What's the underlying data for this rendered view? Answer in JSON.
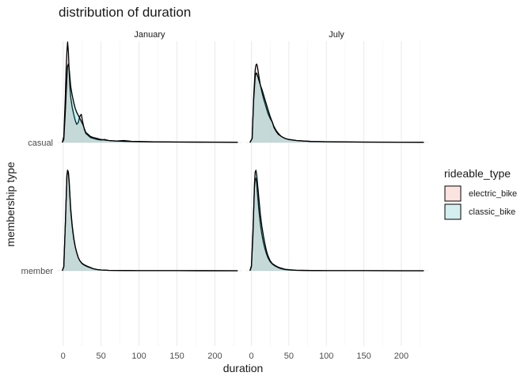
{
  "chart_data": {
    "type": "area",
    "title": "distribution of duration",
    "xlabel": "duration",
    "ylabel": "membership type",
    "xlim": [
      -8,
      236
    ],
    "x_ticks": [
      "0",
      "50",
      "100",
      "150",
      "200"
    ],
    "y_categories": [
      "casual",
      "member"
    ],
    "facets": [
      "January",
      "July"
    ],
    "legend": {
      "title": "rideable_type",
      "position": "right",
      "entries": [
        {
          "name": "electric_bike",
          "fill": "#fbe3e0",
          "alpha_fill": "rgba(248,118,109,0.22)"
        },
        {
          "name": "classic_bike",
          "fill": "#d5eef0",
          "alpha_fill": "rgba(0,191,196,0.22)"
        }
      ]
    },
    "grid": true,
    "series": [
      {
        "facet": "January",
        "membership": "casual",
        "name": "electric_bike",
        "x": [
          -1,
          1,
          3,
          4,
          5,
          6,
          7,
          8,
          9,
          10,
          12,
          14,
          16,
          18,
          20,
          22,
          24,
          26,
          28,
          30,
          33,
          36,
          40,
          45,
          50,
          55,
          60,
          70,
          80,
          90,
          100,
          120,
          150,
          200,
          230
        ],
        "y": [
          0,
          0.06,
          0.45,
          0.72,
          0.9,
          1.0,
          0.9,
          0.72,
          0.55,
          0.45,
          0.35,
          0.28,
          0.22,
          0.18,
          0.2,
          0.26,
          0.28,
          0.2,
          0.13,
          0.09,
          0.07,
          0.05,
          0.04,
          0.03,
          0.025,
          0.03,
          0.02,
          0.015,
          0.02,
          0.012,
          0.01,
          0.007,
          0.005,
          0.004,
          0.002
        ]
      },
      {
        "facet": "January",
        "membership": "casual",
        "name": "classic_bike",
        "x": [
          -1,
          1,
          3,
          5,
          6,
          7,
          8,
          9,
          10,
          12,
          14,
          16,
          18,
          20,
          22,
          24,
          26,
          28,
          30,
          33,
          36,
          40,
          45,
          50,
          55,
          60,
          70,
          80,
          90,
          100,
          120,
          150,
          200,
          230
        ],
        "y": [
          0,
          0.03,
          0.3,
          0.65,
          0.76,
          0.78,
          0.74,
          0.65,
          0.56,
          0.47,
          0.4,
          0.34,
          0.3,
          0.27,
          0.24,
          0.21,
          0.18,
          0.14,
          0.1,
          0.08,
          0.06,
          0.05,
          0.04,
          0.03,
          0.025,
          0.02,
          0.015,
          0.012,
          0.01,
          0.008,
          0.006,
          0.004,
          0.003,
          0.002
        ]
      },
      {
        "facet": "July",
        "membership": "casual",
        "name": "electric_bike",
        "x": [
          -2,
          1,
          3,
          5,
          6,
          7,
          8,
          10,
          12,
          14,
          16,
          18,
          20,
          22,
          25,
          28,
          30,
          33,
          36,
          40,
          45,
          50,
          60,
          70,
          80,
          100,
          120,
          150,
          200,
          230
        ],
        "y": [
          0,
          0.04,
          0.45,
          0.72,
          0.77,
          0.78,
          0.76,
          0.66,
          0.57,
          0.5,
          0.44,
          0.39,
          0.34,
          0.29,
          0.24,
          0.2,
          0.16,
          0.12,
          0.09,
          0.06,
          0.04,
          0.03,
          0.02,
          0.014,
          0.01,
          0.007,
          0.005,
          0.004,
          0.003,
          0.002
        ]
      },
      {
        "facet": "July",
        "membership": "casual",
        "name": "classic_bike",
        "x": [
          -2,
          1,
          3,
          5,
          6,
          7,
          8,
          10,
          12,
          14,
          16,
          18,
          20,
          22,
          25,
          28,
          30,
          33,
          36,
          40,
          45,
          50,
          60,
          70,
          80,
          100,
          120,
          150,
          200,
          230
        ],
        "y": [
          0,
          0.04,
          0.42,
          0.65,
          0.69,
          0.69,
          0.67,
          0.62,
          0.57,
          0.53,
          0.48,
          0.43,
          0.38,
          0.33,
          0.26,
          0.2,
          0.15,
          0.11,
          0.08,
          0.06,
          0.04,
          0.03,
          0.02,
          0.015,
          0.01,
          0.008,
          0.006,
          0.004,
          0.003,
          0.002
        ]
      },
      {
        "facet": "January",
        "membership": "member",
        "name": "electric_bike",
        "x": [
          -1,
          1,
          3,
          5,
          6,
          7,
          8,
          9,
          10,
          12,
          14,
          16,
          18,
          20,
          22,
          25,
          28,
          32,
          36,
          40,
          45,
          50,
          60,
          80,
          100,
          150,
          230
        ],
        "y": [
          0,
          0.04,
          0.45,
          0.94,
          1.0,
          0.98,
          0.9,
          0.76,
          0.62,
          0.45,
          0.33,
          0.24,
          0.18,
          0.13,
          0.1,
          0.07,
          0.055,
          0.04,
          0.03,
          0.02,
          0.012,
          0.008,
          0.004,
          0.002,
          0.001,
          0.0005,
          0
        ]
      },
      {
        "facet": "January",
        "membership": "member",
        "name": "classic_bike",
        "x": [
          -1,
          1,
          3,
          5,
          6,
          7,
          8,
          9,
          10,
          12,
          14,
          16,
          18,
          20,
          22,
          25,
          28,
          32,
          36,
          40,
          45,
          50,
          60,
          80,
          100,
          150,
          230
        ],
        "y": [
          0,
          0.04,
          0.46,
          0.95,
          1.0,
          0.97,
          0.88,
          0.74,
          0.6,
          0.44,
          0.32,
          0.24,
          0.18,
          0.13,
          0.1,
          0.075,
          0.06,
          0.045,
          0.032,
          0.02,
          0.012,
          0.008,
          0.004,
          0.002,
          0.001,
          0.0005,
          0
        ]
      },
      {
        "facet": "July",
        "membership": "member",
        "name": "electric_bike",
        "x": [
          -2,
          0,
          2,
          4,
          5,
          6,
          7,
          8,
          10,
          12,
          14,
          16,
          18,
          20,
          22,
          25,
          28,
          32,
          36,
          40,
          45,
          50,
          60,
          80,
          100,
          150,
          230
        ],
        "y": [
          0,
          0.05,
          0.4,
          0.82,
          0.92,
          0.92,
          0.87,
          0.78,
          0.6,
          0.46,
          0.36,
          0.28,
          0.22,
          0.17,
          0.13,
          0.09,
          0.065,
          0.045,
          0.03,
          0.02,
          0.012,
          0.008,
          0.004,
          0.002,
          0.001,
          0.0005,
          0
        ]
      },
      {
        "facet": "July",
        "membership": "member",
        "name": "classic_bike",
        "x": [
          -2,
          0,
          2,
          4,
          5,
          6,
          7,
          8,
          10,
          12,
          14,
          16,
          18,
          20,
          22,
          25,
          28,
          32,
          36,
          40,
          45,
          50,
          60,
          80,
          100,
          150,
          230
        ],
        "y": [
          0,
          0.04,
          0.35,
          0.86,
          0.98,
          1.0,
          0.96,
          0.88,
          0.72,
          0.56,
          0.44,
          0.35,
          0.27,
          0.2,
          0.15,
          0.1,
          0.07,
          0.05,
          0.035,
          0.025,
          0.015,
          0.01,
          0.005,
          0.002,
          0.001,
          0.0005,
          0
        ]
      }
    ]
  }
}
